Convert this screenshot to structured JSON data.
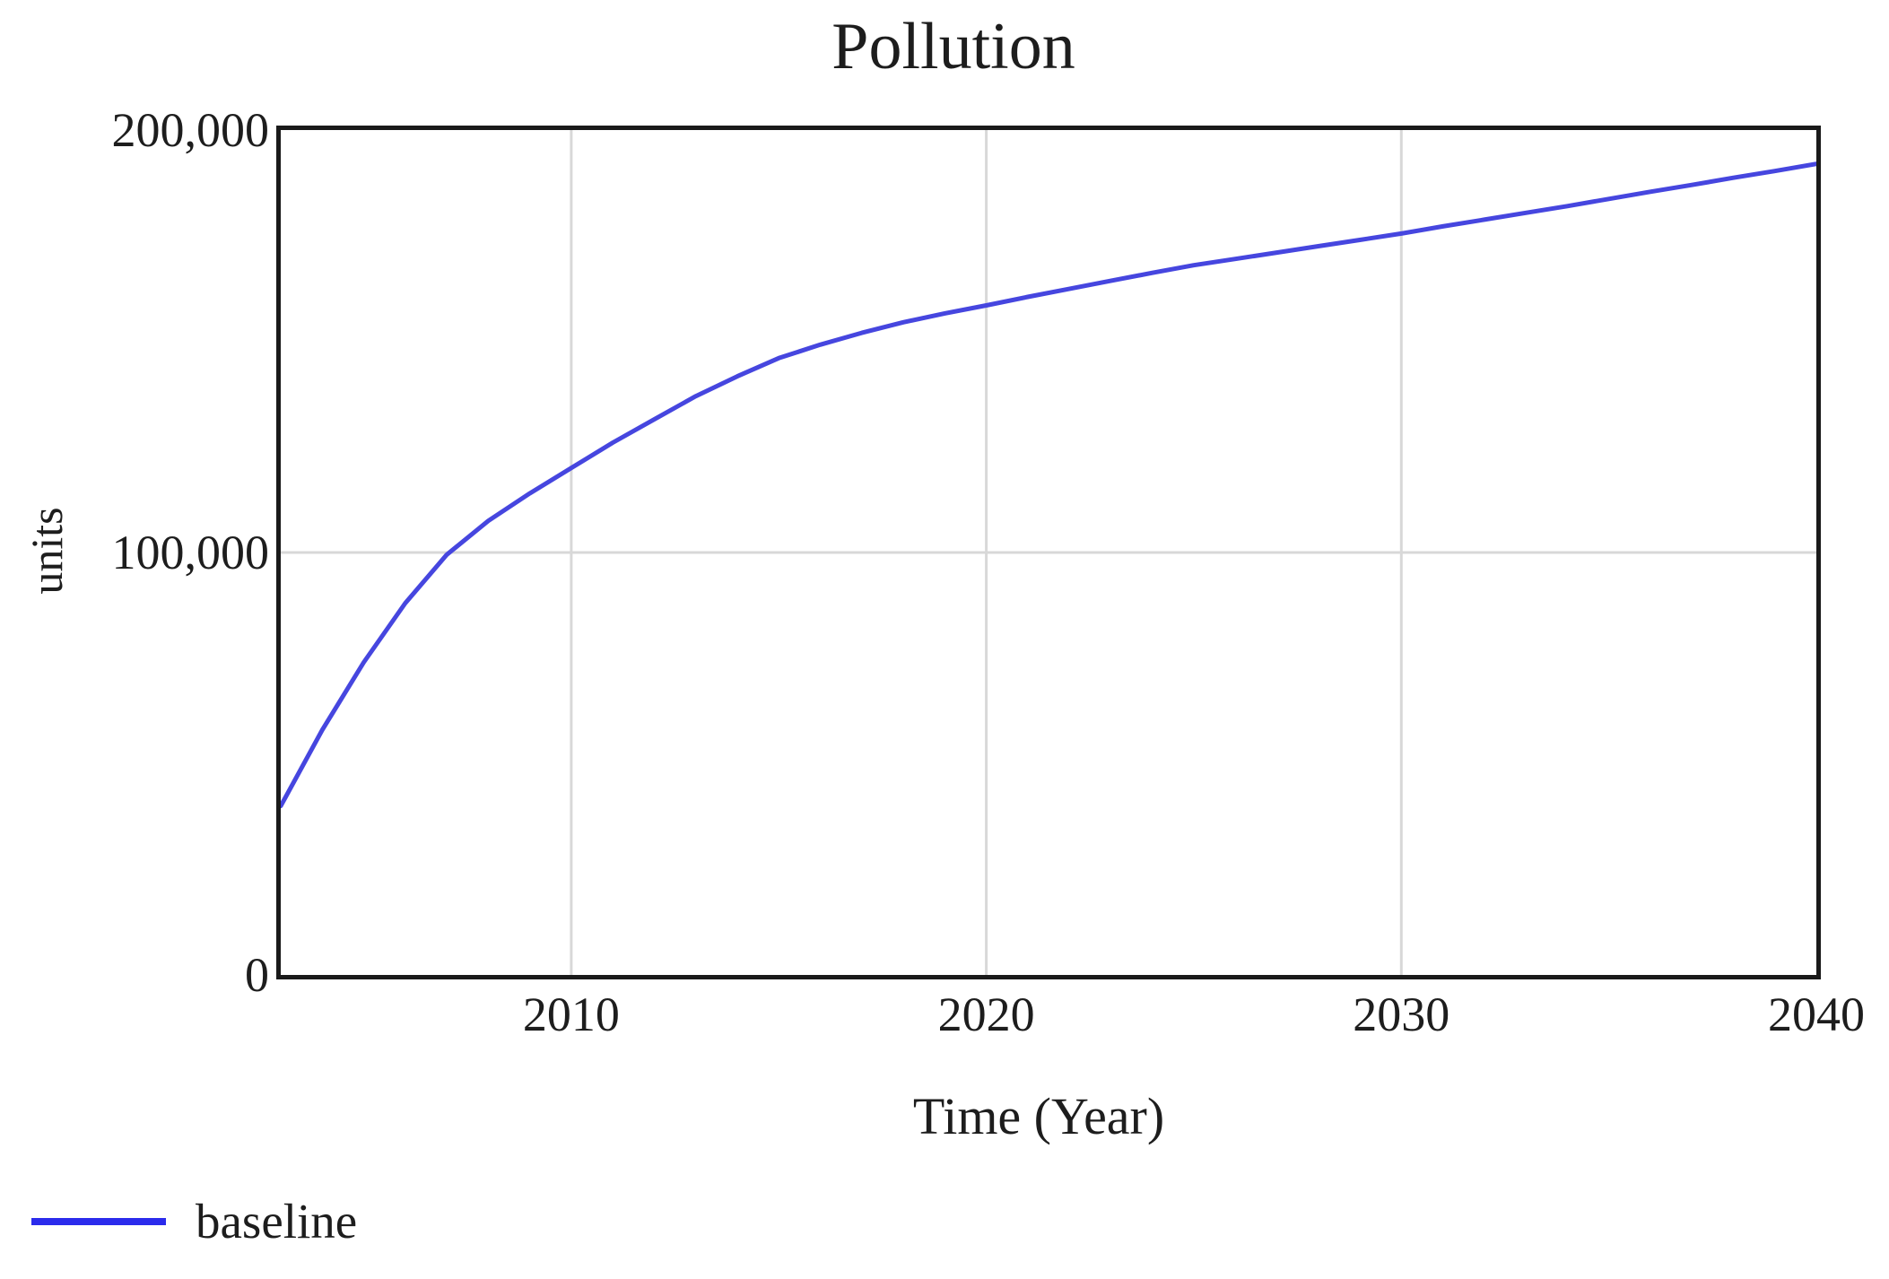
{
  "title": "Pollution",
  "axes": {
    "x_label": "Time (Year)",
    "y_label": "units"
  },
  "legend": {
    "items": [
      {
        "label": "baseline",
        "color": "#2b2bec"
      }
    ]
  },
  "colors": {
    "background": "#ffffff",
    "frame": "#1a1a1a",
    "grid": "#d8d8d8",
    "text": "#1d1d1d",
    "line": "#4646df"
  },
  "chart_data": {
    "type": "line",
    "title": "Pollution",
    "xlabel": "Time (Year)",
    "ylabel": "units",
    "xlim": [
      2003,
      2040
    ],
    "ylim": [
      0,
      200000
    ],
    "x_tick_values": [
      2010,
      2020,
      2030,
      2040
    ],
    "x_tick_labels": [
      "2010",
      "2020",
      "2030",
      "2040"
    ],
    "y_tick_values": [
      0,
      100000,
      200000
    ],
    "y_tick_labels": [
      "0",
      "100,000",
      "200,000"
    ],
    "grid": true,
    "legend_position": "bottom-left",
    "series": [
      {
        "name": "baseline",
        "color": "#4646df",
        "x": [
          2003,
          2004,
          2005,
          2006,
          2007,
          2008,
          2009,
          2010,
          2011,
          2012,
          2013,
          2014,
          2015,
          2016,
          2017,
          2018,
          2019,
          2020,
          2021,
          2022,
          2023,
          2024,
          2025,
          2026,
          2027,
          2028,
          2029,
          2030,
          2031,
          2032,
          2033,
          2034,
          2035,
          2036,
          2037,
          2038,
          2039,
          2040
        ],
        "y": [
          40000,
          58000,
          74000,
          88000,
          99500,
          107500,
          114000,
          120000,
          126000,
          131500,
          137000,
          141700,
          146000,
          149200,
          152000,
          154500,
          156600,
          158500,
          160500,
          162400,
          164300,
          166200,
          168000,
          169500,
          171000,
          172500,
          174000,
          175500,
          177200,
          178800,
          180400,
          182000,
          183700,
          185400,
          187000,
          188700,
          190300,
          192000
        ]
      }
    ]
  }
}
